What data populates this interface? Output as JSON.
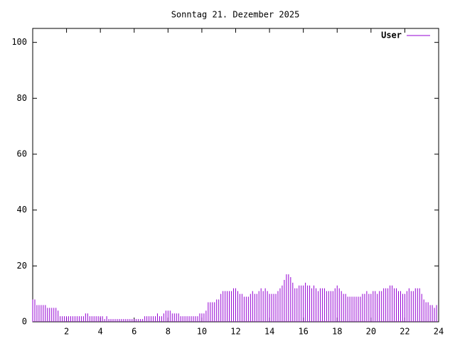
{
  "chart_data": {
    "type": "impulse",
    "title": "Sonntag 21. Dezember 2025",
    "x": [
      0,
      0.125,
      0.25,
      0.375,
      0.5,
      0.625,
      0.75,
      0.875,
      1,
      1.125,
      1.25,
      1.375,
      1.5,
      1.625,
      1.75,
      1.875,
      2,
      2.125,
      2.25,
      2.375,
      2.5,
      2.625,
      2.75,
      2.875,
      3,
      3.125,
      3.25,
      3.375,
      3.5,
      3.625,
      3.75,
      3.875,
      4,
      4.125,
      4.25,
      4.375,
      4.5,
      4.625,
      4.75,
      4.875,
      5,
      5.125,
      5.25,
      5.375,
      5.5,
      5.625,
      5.75,
      5.875,
      6,
      6.125,
      6.25,
      6.375,
      6.5,
      6.625,
      6.75,
      6.875,
      7,
      7.125,
      7.25,
      7.375,
      7.5,
      7.625,
      7.75,
      7.875,
      8,
      8.125,
      8.25,
      8.375,
      8.5,
      8.625,
      8.75,
      8.875,
      9,
      9.125,
      9.25,
      9.375,
      9.5,
      9.625,
      9.75,
      9.875,
      10,
      10.125,
      10.25,
      10.375,
      10.5,
      10.625,
      10.75,
      10.875,
      11,
      11.125,
      11.25,
      11.375,
      11.5,
      11.625,
      11.75,
      11.875,
      12,
      12.125,
      12.25,
      12.375,
      12.5,
      12.625,
      12.75,
      12.875,
      13,
      13.125,
      13.25,
      13.375,
      13.5,
      13.625,
      13.75,
      13.875,
      14,
      14.125,
      14.25,
      14.375,
      14.5,
      14.625,
      14.75,
      14.875,
      15,
      15.125,
      15.25,
      15.375,
      15.5,
      15.625,
      15.75,
      15.875,
      16,
      16.125,
      16.25,
      16.375,
      16.5,
      16.625,
      16.75,
      16.875,
      17,
      17.125,
      17.25,
      17.375,
      17.5,
      17.625,
      17.75,
      17.875,
      18,
      18.125,
      18.25,
      18.375,
      18.5,
      18.625,
      18.75,
      18.875,
      19,
      19.125,
      19.25,
      19.375,
      19.5,
      19.625,
      19.75,
      19.875,
      20,
      20.125,
      20.25,
      20.375,
      20.5,
      20.625,
      20.75,
      20.875,
      21,
      21.125,
      21.25,
      21.375,
      21.5,
      21.625,
      21.75,
      21.875,
      22,
      22.125,
      22.25,
      22.375,
      22.5,
      22.625,
      22.75,
      22.875,
      23,
      23.125,
      23.25,
      23.375,
      23.5,
      23.625,
      23.75,
      23.875
    ],
    "series": [
      {
        "name": "User",
        "color": "#9400d3",
        "values": [
          8,
          8,
          6,
          6,
          6,
          6,
          6,
          5,
          5,
          5,
          5,
          5,
          4,
          2,
          2,
          2,
          2,
          2,
          2,
          2,
          2,
          2,
          2,
          2,
          2,
          3,
          3,
          2,
          2,
          2,
          2,
          2,
          2,
          2,
          1,
          2,
          1,
          1,
          1,
          1,
          1,
          1,
          1,
          1,
          1,
          1,
          1,
          1,
          1,
          1,
          1,
          1,
          1,
          2,
          2,
          2,
          2,
          2,
          2,
          3,
          2,
          2,
          3,
          4,
          4,
          4,
          3,
          3,
          3,
          3,
          2,
          2,
          2,
          2,
          2,
          2,
          2,
          2,
          2,
          3,
          3,
          3,
          4,
          7,
          7,
          7,
          7,
          8,
          8,
          10,
          11,
          11,
          11,
          11,
          11,
          12,
          12,
          11,
          10,
          10,
          9,
          9,
          9,
          10,
          11,
          10,
          10,
          11,
          12,
          11,
          12,
          11,
          10,
          10,
          10,
          10,
          11,
          12,
          13,
          15,
          17,
          17,
          16,
          14,
          12,
          12,
          13,
          13,
          13,
          14,
          13,
          13,
          12,
          13,
          12,
          11,
          12,
          12,
          12,
          11,
          11,
          11,
          11,
          12,
          13,
          12,
          11,
          10,
          10,
          9,
          9,
          9,
          9,
          9,
          9,
          9,
          10,
          10,
          11,
          10,
          10,
          11,
          11,
          10,
          11,
          11,
          12,
          12,
          12,
          13,
          13,
          12,
          12,
          11,
          11,
          10,
          10,
          11,
          12,
          11,
          11,
          12,
          12,
          12,
          10,
          8,
          7,
          7,
          6,
          6,
          5,
          6
        ]
      }
    ],
    "xlim": [
      0,
      24
    ],
    "xticks": [
      2,
      4,
      6,
      8,
      10,
      12,
      14,
      16,
      18,
      20,
      22,
      24
    ],
    "ylim": [
      0,
      105
    ],
    "yticks": [
      0,
      20,
      40,
      60,
      80,
      100
    ],
    "legend": "top-right"
  }
}
